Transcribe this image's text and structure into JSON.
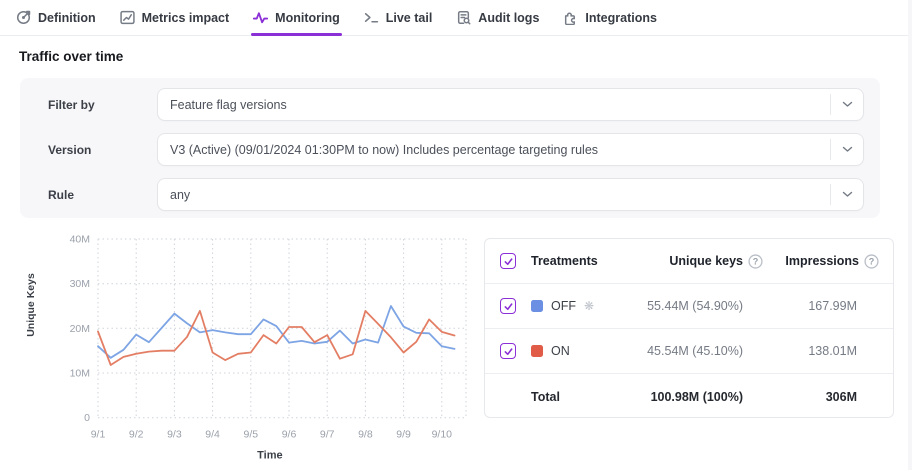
{
  "tabs": [
    {
      "label": "Definition",
      "icon": "definition-target-icon",
      "active": false
    },
    {
      "label": "Metrics impact",
      "icon": "metrics-chart-icon",
      "active": false
    },
    {
      "label": "Monitoring",
      "icon": "monitoring-pulse-icon",
      "active": true
    },
    {
      "label": "Live tail",
      "icon": "terminal-prompt-icon",
      "active": false
    },
    {
      "label": "Audit logs",
      "icon": "audit-document-search-icon",
      "active": false
    },
    {
      "label": "Integrations",
      "icon": "puzzle-piece-icon",
      "active": false
    }
  ],
  "section_title": "Traffic over time",
  "filters": {
    "rows": [
      {
        "label": "Filter by",
        "value": "Feature flag versions"
      },
      {
        "label": "Version",
        "value": "V3 (Active) (09/01/2024 01:30PM to now) Includes percentage targeting rules"
      },
      {
        "label": "Rule",
        "value": "any"
      }
    ]
  },
  "chart_data": {
    "type": "line",
    "xlabel": "Time",
    "ylabel": "Unique Keys",
    "x_ticks": [
      "9/1",
      "9/2",
      "9/3",
      "9/4",
      "9/5",
      "9/6",
      "9/7",
      "9/8",
      "9/9",
      "9/10"
    ],
    "y_ticks": [
      "0",
      "10M",
      "20M",
      "30M",
      "40M"
    ],
    "ylim": [
      0,
      40
    ],
    "unit": "M",
    "points_per_day": 3,
    "grid": "dotted",
    "legend_position": "table-right",
    "series": [
      {
        "name": "OFF",
        "color": "#7da4e4",
        "values": [
          16.0,
          13.4,
          15.2,
          18.6,
          16.9,
          20.1,
          23.3,
          21.1,
          19.1,
          19.6,
          19.1,
          18.7,
          18.7,
          22.0,
          20.5,
          16.8,
          17.2,
          16.6,
          17.0,
          19.5,
          16.6,
          17.5,
          16.8,
          25.0,
          20.4,
          19.0,
          18.9,
          16.0,
          15.4
        ]
      },
      {
        "name": "ON",
        "color": "#e37e64",
        "values": [
          19.3,
          11.8,
          13.6,
          14.3,
          14.8,
          15.0,
          15.0,
          18.1,
          23.9,
          14.6,
          12.9,
          14.3,
          14.6,
          18.5,
          16.6,
          20.3,
          20.3,
          16.9,
          18.5,
          13.2,
          14.2,
          23.9,
          21.0,
          18.0,
          14.6,
          17.0,
          22.0,
          19.2,
          18.4
        ]
      }
    ]
  },
  "treatments_table": {
    "header": {
      "treatments": "Treatments",
      "unique_keys": "Unique keys",
      "impressions": "Impressions"
    },
    "rows": [
      {
        "name": "OFF",
        "color": "#6b8fe3",
        "badge": "❋",
        "unique_keys": "55.44M (54.90%)",
        "impressions": "167.99M",
        "checked": true
      },
      {
        "name": "ON",
        "color": "#e05c47",
        "unique_keys": "45.54M (45.10%)",
        "impressions": "138.01M",
        "checked": true
      }
    ],
    "total": {
      "label": "Total",
      "unique_keys": "100.98M (100%)",
      "impressions": "306M"
    }
  },
  "colors": {
    "accent": "#8b2fd6",
    "grid_line": "#cfd3da",
    "tick_label": "#9ba1ab"
  }
}
